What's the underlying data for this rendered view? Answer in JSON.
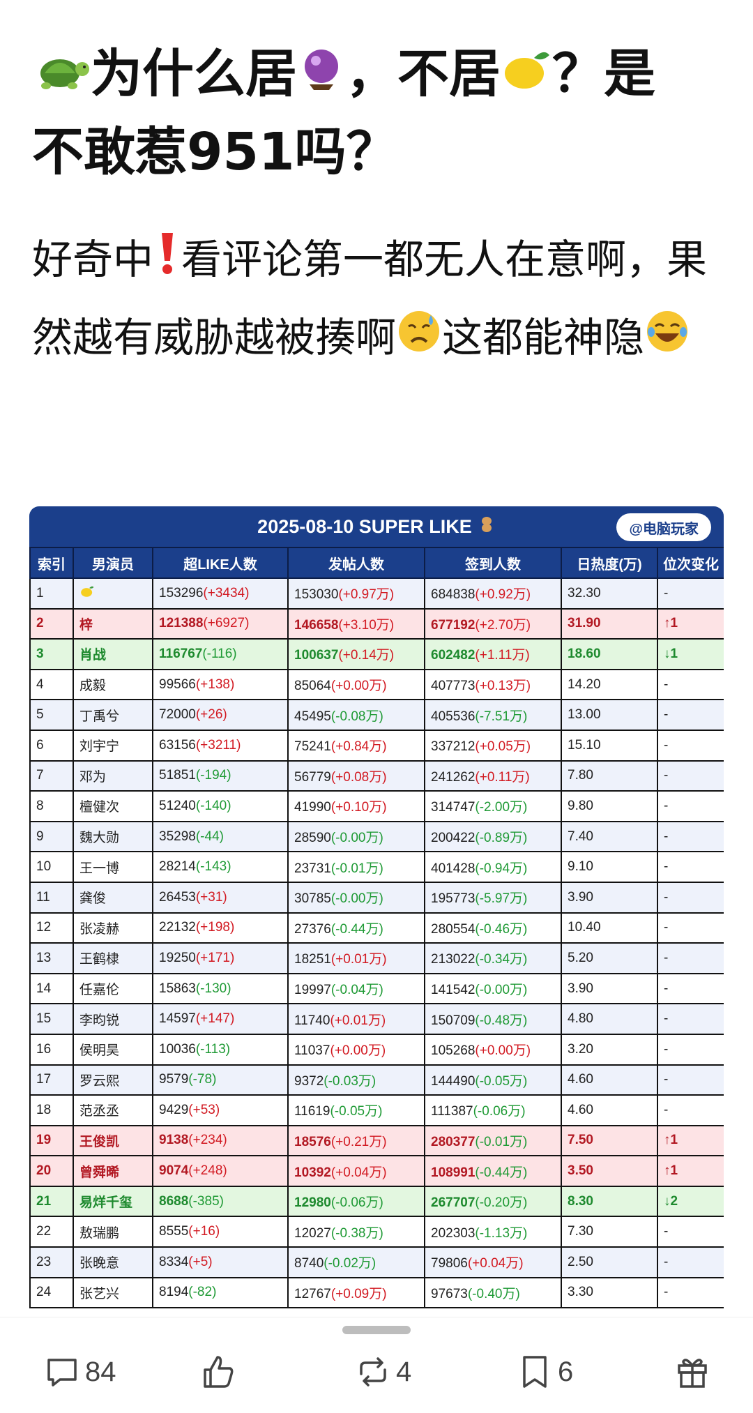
{
  "post": {
    "title_line1_a": "为什么居",
    "title_line1_b": "，不居",
    "title_line1_c": "？是",
    "title_line2": "不敢惹951吗？",
    "body_a": "好奇中",
    "body_b": "看评论第一都无人在意啊，果然越有威胁越被揍啊",
    "body_c": "这都能神隐",
    "emoji_icons": [
      "turtle-icon",
      "crystal-ball-icon",
      "lemon-icon",
      "exclamation-icon",
      "sad-sweat-icon",
      "laughing-icon"
    ]
  },
  "table": {
    "title": "2025-08-10 SUPER LIKE",
    "watermark": "@电脑玩家",
    "headers": [
      "索引",
      "男演员",
      "超LIKE人数",
      "发帖人数",
      "签到人数",
      "日热度(万)",
      "位次变化"
    ],
    "rows": [
      {
        "idx": "1",
        "name": "",
        "name_icon": "lemon-icon",
        "like": "153296",
        "like_d": "(+3434)",
        "post": "153030",
        "post_d": "(+0.97万)",
        "sign": "684838",
        "sign_d": "(+0.92万)",
        "heat": "32.30",
        "change": "-",
        "style": "alt"
      },
      {
        "idx": "2",
        "name": "梓",
        "like": "121388",
        "like_d": "(+6927)",
        "post": "146658",
        "post_d": "(+3.10万)",
        "sign": "677192",
        "sign_d": "(+2.70万)",
        "heat": "31.90",
        "change": "↑1",
        "style": "up"
      },
      {
        "idx": "3",
        "name": "肖战",
        "like": "116767",
        "like_d": "(-116)",
        "post": "100637",
        "post_d": "(+0.14万)",
        "sign": "602482",
        "sign_d": "(+1.11万)",
        "heat": "18.60",
        "change": "↓1",
        "style": "down"
      },
      {
        "idx": "4",
        "name": "成毅",
        "like": "99566",
        "like_d": "(+138)",
        "post": "85064",
        "post_d": "(+0.00万)",
        "sign": "407773",
        "sign_d": "(+0.13万)",
        "heat": "14.20",
        "change": "-",
        "style": ""
      },
      {
        "idx": "5",
        "name": "丁禹兮",
        "like": "72000",
        "like_d": "(+26)",
        "post": "45495",
        "post_d": "(-0.08万)",
        "sign": "405536",
        "sign_d": "(-7.51万)",
        "heat": "13.00",
        "change": "-",
        "style": "alt"
      },
      {
        "idx": "6",
        "name": "刘宇宁",
        "like": "63156",
        "like_d": "(+3211)",
        "post": "75241",
        "post_d": "(+0.84万)",
        "sign": "337212",
        "sign_d": "(+0.05万)",
        "heat": "15.10",
        "change": "-",
        "style": ""
      },
      {
        "idx": "7",
        "name": "邓为",
        "like": "51851",
        "like_d": "(-194)",
        "post": "56779",
        "post_d": "(+0.08万)",
        "sign": "241262",
        "sign_d": "(+0.11万)",
        "heat": "7.80",
        "change": "-",
        "style": "alt"
      },
      {
        "idx": "8",
        "name": "檀健次",
        "like": "51240",
        "like_d": "(-140)",
        "post": "41990",
        "post_d": "(+0.10万)",
        "sign": "314747",
        "sign_d": "(-2.00万)",
        "heat": "9.80",
        "change": "-",
        "style": ""
      },
      {
        "idx": "9",
        "name": "魏大勋",
        "like": "35298",
        "like_d": "(-44)",
        "post": "28590",
        "post_d": "(-0.00万)",
        "sign": "200422",
        "sign_d": "(-0.89万)",
        "heat": "7.40",
        "change": "-",
        "style": "alt"
      },
      {
        "idx": "10",
        "name": "王一博",
        "like": "28214",
        "like_d": "(-143)",
        "post": "23731",
        "post_d": "(-0.01万)",
        "sign": "401428",
        "sign_d": "(-0.94万)",
        "heat": "9.10",
        "change": "-",
        "style": ""
      },
      {
        "idx": "11",
        "name": "龚俊",
        "like": "26453",
        "like_d": "(+31)",
        "post": "30785",
        "post_d": "(-0.00万)",
        "sign": "195773",
        "sign_d": "(-5.97万)",
        "heat": "3.90",
        "change": "-",
        "style": "alt"
      },
      {
        "idx": "12",
        "name": "张凌赫",
        "like": "22132",
        "like_d": "(+198)",
        "post": "27376",
        "post_d": "(-0.44万)",
        "sign": "280554",
        "sign_d": "(-0.46万)",
        "heat": "10.40",
        "change": "-",
        "style": ""
      },
      {
        "idx": "13",
        "name": "王鹤棣",
        "like": "19250",
        "like_d": "(+171)",
        "post": "18251",
        "post_d": "(+0.01万)",
        "sign": "213022",
        "sign_d": "(-0.34万)",
        "heat": "5.20",
        "change": "-",
        "style": "alt"
      },
      {
        "idx": "14",
        "name": "任嘉伦",
        "like": "15863",
        "like_d": "(-130)",
        "post": "19997",
        "post_d": "(-0.04万)",
        "sign": "141542",
        "sign_d": "(-0.00万)",
        "heat": "3.90",
        "change": "-",
        "style": ""
      },
      {
        "idx": "15",
        "name": "李昀锐",
        "like": "14597",
        "like_d": "(+147)",
        "post": "11740",
        "post_d": "(+0.01万)",
        "sign": "150709",
        "sign_d": "(-0.48万)",
        "heat": "4.80",
        "change": "-",
        "style": "alt"
      },
      {
        "idx": "16",
        "name": "侯明昊",
        "like": "10036",
        "like_d": "(-113)",
        "post": "11037",
        "post_d": "(+0.00万)",
        "sign": "105268",
        "sign_d": "(+0.00万)",
        "heat": "3.20",
        "change": "-",
        "style": ""
      },
      {
        "idx": "17",
        "name": "罗云熙",
        "like": "9579",
        "like_d": "(-78)",
        "post": "9372",
        "post_d": "(-0.03万)",
        "sign": "144490",
        "sign_d": "(-0.05万)",
        "heat": "4.60",
        "change": "-",
        "style": "alt"
      },
      {
        "idx": "18",
        "name": "范丞丞",
        "like": "9429",
        "like_d": "(+53)",
        "post": "11619",
        "post_d": "(-0.05万)",
        "sign": "111387",
        "sign_d": "(-0.06万)",
        "heat": "4.60",
        "change": "-",
        "style": ""
      },
      {
        "idx": "19",
        "name": "王俊凯",
        "like": "9138",
        "like_d": "(+234)",
        "post": "18576",
        "post_d": "(+0.21万)",
        "sign": "280377",
        "sign_d": "(-0.01万)",
        "heat": "7.50",
        "change": "↑1",
        "style": "up"
      },
      {
        "idx": "20",
        "name": "曾舜晞",
        "like": "9074",
        "like_d": "(+248)",
        "post": "10392",
        "post_d": "(+0.04万)",
        "sign": "108991",
        "sign_d": "(-0.44万)",
        "heat": "3.50",
        "change": "↑1",
        "style": "up"
      },
      {
        "idx": "21",
        "name": "易烊千玺",
        "like": "8688",
        "like_d": "(-385)",
        "post": "12980",
        "post_d": "(-0.06万)",
        "sign": "267707",
        "sign_d": "(-0.20万)",
        "heat": "8.30",
        "change": "↓2",
        "style": "down"
      },
      {
        "idx": "22",
        "name": "敖瑞鹏",
        "like": "8555",
        "like_d": "(+16)",
        "post": "12027",
        "post_d": "(-0.38万)",
        "sign": "202303",
        "sign_d": "(-1.13万)",
        "heat": "7.30",
        "change": "-",
        "style": ""
      },
      {
        "idx": "23",
        "name": "张晚意",
        "like": "8334",
        "like_d": "(+5)",
        "post": "8740",
        "post_d": "(-0.02万)",
        "sign": "79806",
        "sign_d": "(+0.04万)",
        "heat": "2.50",
        "change": "-",
        "style": "alt"
      },
      {
        "idx": "24",
        "name": "张艺兴",
        "like": "8194",
        "like_d": "(-82)",
        "post": "12767",
        "post_d": "(+0.09万)",
        "sign": "97673",
        "sign_d": "(-0.40万)",
        "heat": "3.30",
        "change": "-",
        "style": ""
      }
    ]
  },
  "actions": {
    "comments_count": "84",
    "reposts_count": "4",
    "favorites_count": "6",
    "icons": [
      "comment-icon",
      "like-icon",
      "repost-icon",
      "bookmark-icon",
      "gift-icon"
    ]
  },
  "colors": {
    "table_header": "#1b3f8b",
    "up_row": "#fde3e5",
    "down_row": "#e3f7e0",
    "positive": "#d21a22",
    "negative": "#1f9a35"
  }
}
